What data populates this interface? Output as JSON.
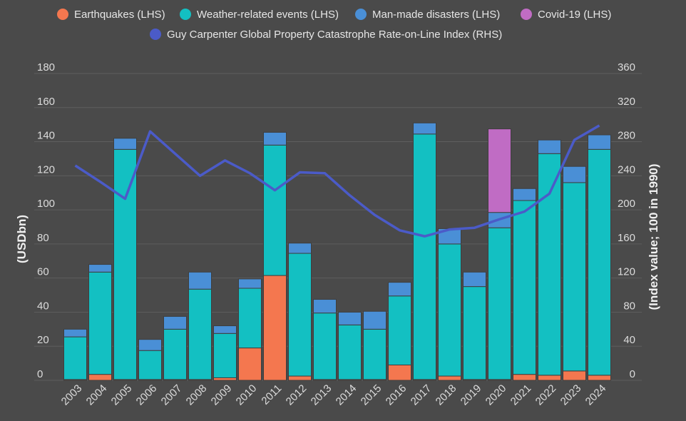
{
  "chart_data": {
    "type": "bar",
    "stacked": true,
    "categories": [
      "2003",
      "2004",
      "2005",
      "2006",
      "2007",
      "2008",
      "2009",
      "2010",
      "2011",
      "2012",
      "2013",
      "2014",
      "2015",
      "2016",
      "2017",
      "2018",
      "2019",
      "2020",
      "2021",
      "2022",
      "2023",
      "2024"
    ],
    "series": [
      {
        "name": "Earthquakes (LHS)",
        "color": "#f4774f",
        "axis": "left",
        "values": [
          0.5,
          3.5,
          0.5,
          0.5,
          0.5,
          0.5,
          1.5,
          19,
          61.5,
          2.5,
          0.5,
          0.5,
          0.5,
          9,
          0.5,
          2.5,
          0.5,
          0.5,
          3.5,
          3,
          5.5,
          3
        ]
      },
      {
        "name": "Weather-related events (LHS)",
        "color": "#13c0c2",
        "axis": "left",
        "values": [
          25,
          60,
          135,
          17,
          29.5,
          53,
          26,
          35,
          76.5,
          72,
          39,
          32,
          29.5,
          40.5,
          144,
          77.5,
          54.5,
          89,
          102,
          130,
          110.5,
          132.5
        ]
      },
      {
        "name": "Man-made disasters (LHS)",
        "color": "#4a8fd6",
        "axis": "left",
        "values": [
          4.5,
          4.5,
          6.5,
          6.5,
          7.5,
          10,
          4.5,
          5.5,
          7.5,
          6,
          8,
          7.5,
          10.5,
          8,
          6.5,
          9,
          8.5,
          9,
          7,
          8,
          9.5,
          8.5
        ]
      },
      {
        "name": "Covid-19 (LHS)",
        "color": "#c06cc4",
        "axis": "left",
        "values": [
          0,
          0,
          0,
          0,
          0,
          0,
          0,
          0,
          0,
          0,
          0,
          0,
          0,
          0,
          0,
          0,
          0,
          49,
          0,
          0,
          0,
          0
        ]
      },
      {
        "name": "Guy Carpenter Global Property Catastrophe Rate-on-Line Index (RHS)",
        "color": "#4b5bc8",
        "axis": "right",
        "type": "line",
        "values": [
          252,
          233,
          213,
          292,
          266,
          240,
          258,
          243,
          223,
          244,
          243,
          217,
          194,
          176,
          169,
          177,
          179,
          189,
          198,
          219,
          282,
          299
        ]
      }
    ],
    "ylabel": "(USDbn)",
    "y2label": "(Index value; 100 in 1990)",
    "ylim": [
      0,
      180
    ],
    "y2lim": [
      0,
      360
    ],
    "yticks": [
      "0",
      "20",
      "40",
      "60",
      "80",
      "100",
      "120",
      "140",
      "160",
      "180"
    ],
    "y2ticks": [
      "0",
      "40",
      "80",
      "120",
      "160",
      "200",
      "240",
      "280",
      "320",
      "360"
    ],
    "grid": true,
    "legend_position": "top"
  }
}
